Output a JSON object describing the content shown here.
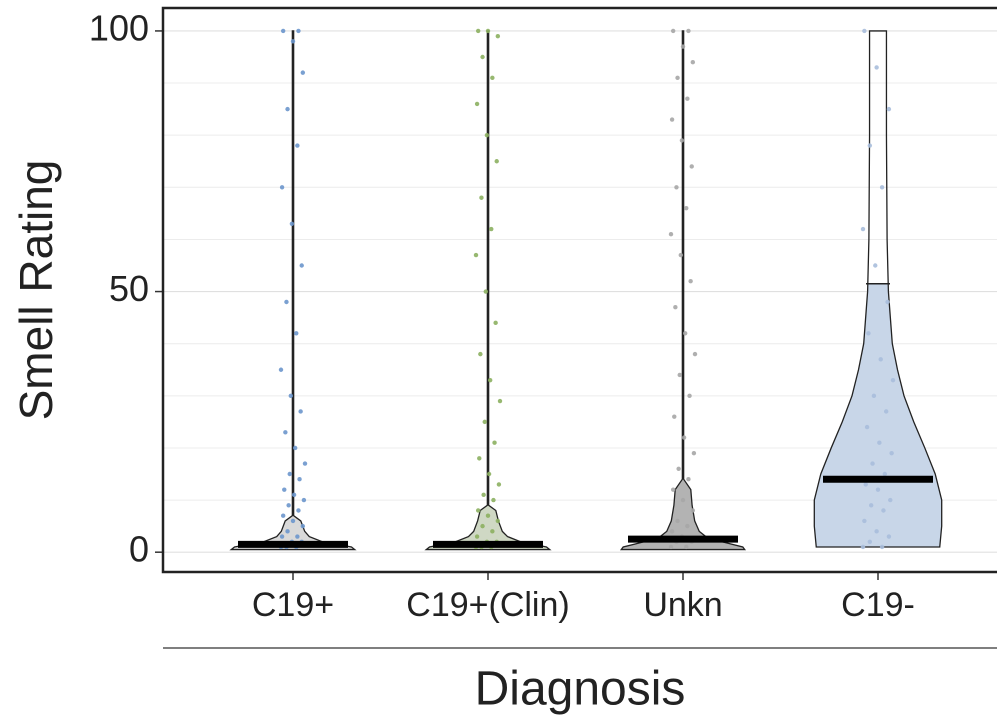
{
  "chart_data": {
    "type": "violin",
    "y_label": "Smell Rating",
    "x_label": "Diagnosis",
    "categories": [
      "C19+",
      "C19+(Clin)",
      "Unkn",
      "C19-"
    ],
    "ylim": [
      -3.8,
      104.4
    ],
    "yticks": [
      0,
      50,
      100
    ],
    "minor_grid": [
      10,
      20,
      30,
      40,
      60,
      70,
      80,
      90
    ],
    "grid": true,
    "series": [
      {
        "name": "C19+",
        "color": "#6b96cc",
        "fill": "#d9d9d9",
        "median": 1.5,
        "violin_y": [
          0.5,
          1,
          2,
          3,
          4,
          5,
          6,
          7,
          20,
          100
        ],
        "violin_width": [
          0.95,
          0.9,
          0.45,
          0.25,
          0.18,
          0.15,
          0.12,
          0.01,
          0.01,
          0.01
        ],
        "values": [
          1,
          1,
          1,
          2,
          2,
          3,
          3,
          4,
          5,
          6,
          7,
          8,
          9,
          10,
          11,
          12,
          14,
          15,
          17,
          20,
          23,
          27,
          30,
          35,
          42,
          48,
          55,
          63,
          70,
          78,
          85,
          92,
          98,
          100,
          100
        ]
      },
      {
        "name": "C19+(Clin)",
        "color": "#8cb060",
        "fill": "#cfd8c4",
        "median": 1.5,
        "violin_y": [
          0.5,
          1,
          2,
          3,
          4,
          6,
          8,
          9,
          20,
          100
        ],
        "violin_width": [
          0.95,
          0.9,
          0.5,
          0.3,
          0.22,
          0.16,
          0.12,
          0.01,
          0.01,
          0.01
        ],
        "values": [
          1,
          1,
          1,
          2,
          2,
          3,
          4,
          5,
          6,
          7,
          8,
          10,
          11,
          13,
          15,
          18,
          21,
          25,
          29,
          33,
          38,
          44,
          50,
          57,
          62,
          68,
          75,
          80,
          86,
          91,
          95,
          99,
          100,
          100
        ]
      },
      {
        "name": "Unkn",
        "color": "#a6a6a6",
        "fill": "#b3b3b3",
        "median": 2.5,
        "violin_y": [
          0.5,
          1,
          2,
          3,
          4,
          6,
          9,
          12,
          14,
          30,
          100
        ],
        "violin_width": [
          0.95,
          0.92,
          0.6,
          0.35,
          0.25,
          0.18,
          0.14,
          0.12,
          0.01,
          0.01,
          0.01
        ],
        "values": [
          1,
          1,
          2,
          2,
          3,
          4,
          5,
          6,
          8,
          10,
          12,
          14,
          16,
          19,
          22,
          26,
          30,
          34,
          38,
          42,
          47,
          52,
          57,
          61,
          66,
          70,
          74,
          79,
          83,
          87,
          91,
          94,
          97,
          100,
          100
        ]
      },
      {
        "name": "C19-",
        "color": "#a8bedb",
        "fill": "#c8d6e8",
        "median": 14,
        "upper_quartile": 51.5,
        "violin_y": [
          1,
          5,
          10,
          15,
          20,
          25,
          30,
          35,
          40,
          50,
          60,
          80,
          100
        ],
        "violin_width": [
          0.95,
          0.98,
          0.98,
          0.88,
          0.72,
          0.55,
          0.4,
          0.3,
          0.22,
          0.16,
          0.14,
          0.13,
          0.13
        ],
        "values": [
          1,
          1,
          2,
          3,
          4,
          6,
          8,
          9,
          10,
          12,
          13,
          15,
          17,
          19,
          21,
          24,
          27,
          30,
          33,
          37,
          42,
          48,
          55,
          62,
          70,
          78,
          85,
          93,
          100
        ]
      }
    ]
  }
}
